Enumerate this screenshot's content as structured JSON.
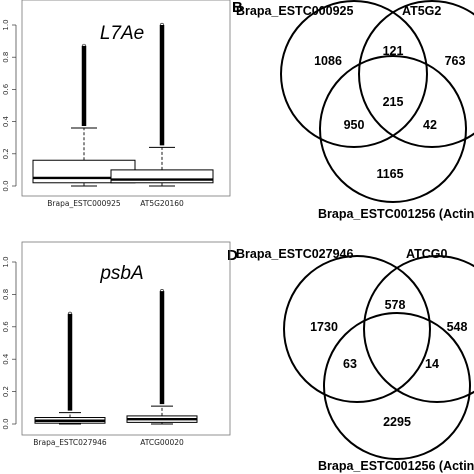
{
  "panels": {
    "B": "B",
    "D": "D"
  },
  "chart_data": [
    {
      "type": "boxplot",
      "title": "L7Ae",
      "ylim": [
        0,
        1.0
      ],
      "yticks": [
        "0.0",
        "0.2",
        "0.4",
        "0.6",
        "0.8",
        "1.0"
      ],
      "categories": [
        "Brapa_ESTC000925",
        "AT5G20160"
      ],
      "boxes": [
        {
          "min": 0.0,
          "q1": 0.02,
          "median": 0.05,
          "q3": 0.16,
          "upper_whisker": 0.36,
          "outlier_max": 0.87
        },
        {
          "min": 0.0,
          "q1": 0.02,
          "median": 0.04,
          "q3": 0.1,
          "upper_whisker": 0.24,
          "outlier_max": 1.0
        }
      ]
    },
    {
      "type": "boxplot",
      "title": "psbA",
      "ylim": [
        0,
        1.0
      ],
      "yticks": [
        "0.0",
        "0.2",
        "0.4",
        "0.6",
        "0.8",
        "1.0"
      ],
      "categories": [
        "Brapa_ESTC027946",
        "ATCG00020"
      ],
      "boxes": [
        {
          "min": 0.0,
          "q1": 0.005,
          "median": 0.02,
          "q3": 0.04,
          "upper_whisker": 0.07,
          "outlier_max": 0.68
        },
        {
          "min": 0.0,
          "q1": 0.01,
          "median": 0.03,
          "q3": 0.05,
          "upper_whisker": 0.11,
          "outlier_max": 0.82
        }
      ]
    },
    {
      "type": "venn",
      "sets": [
        "Brapa_ESTC000925",
        "AT5G2",
        "Brapa_ESTC001256 (Actin"
      ],
      "regions": {
        "a_only": "1086",
        "b_only": "763",
        "c_only": "1165",
        "ab": "121",
        "ac": "950",
        "bc": "42",
        "abc": "215"
      }
    },
    {
      "type": "venn",
      "sets": [
        "Brapa_ESTC027946",
        "ATCG0",
        "Brapa_ESTC001256 (Actin"
      ],
      "regions": {
        "a_only": "1730",
        "b_only": "548",
        "c_only": "2295",
        "ab": "578",
        "ac": "63",
        "bc": "14",
        "abc": ""
      }
    }
  ]
}
